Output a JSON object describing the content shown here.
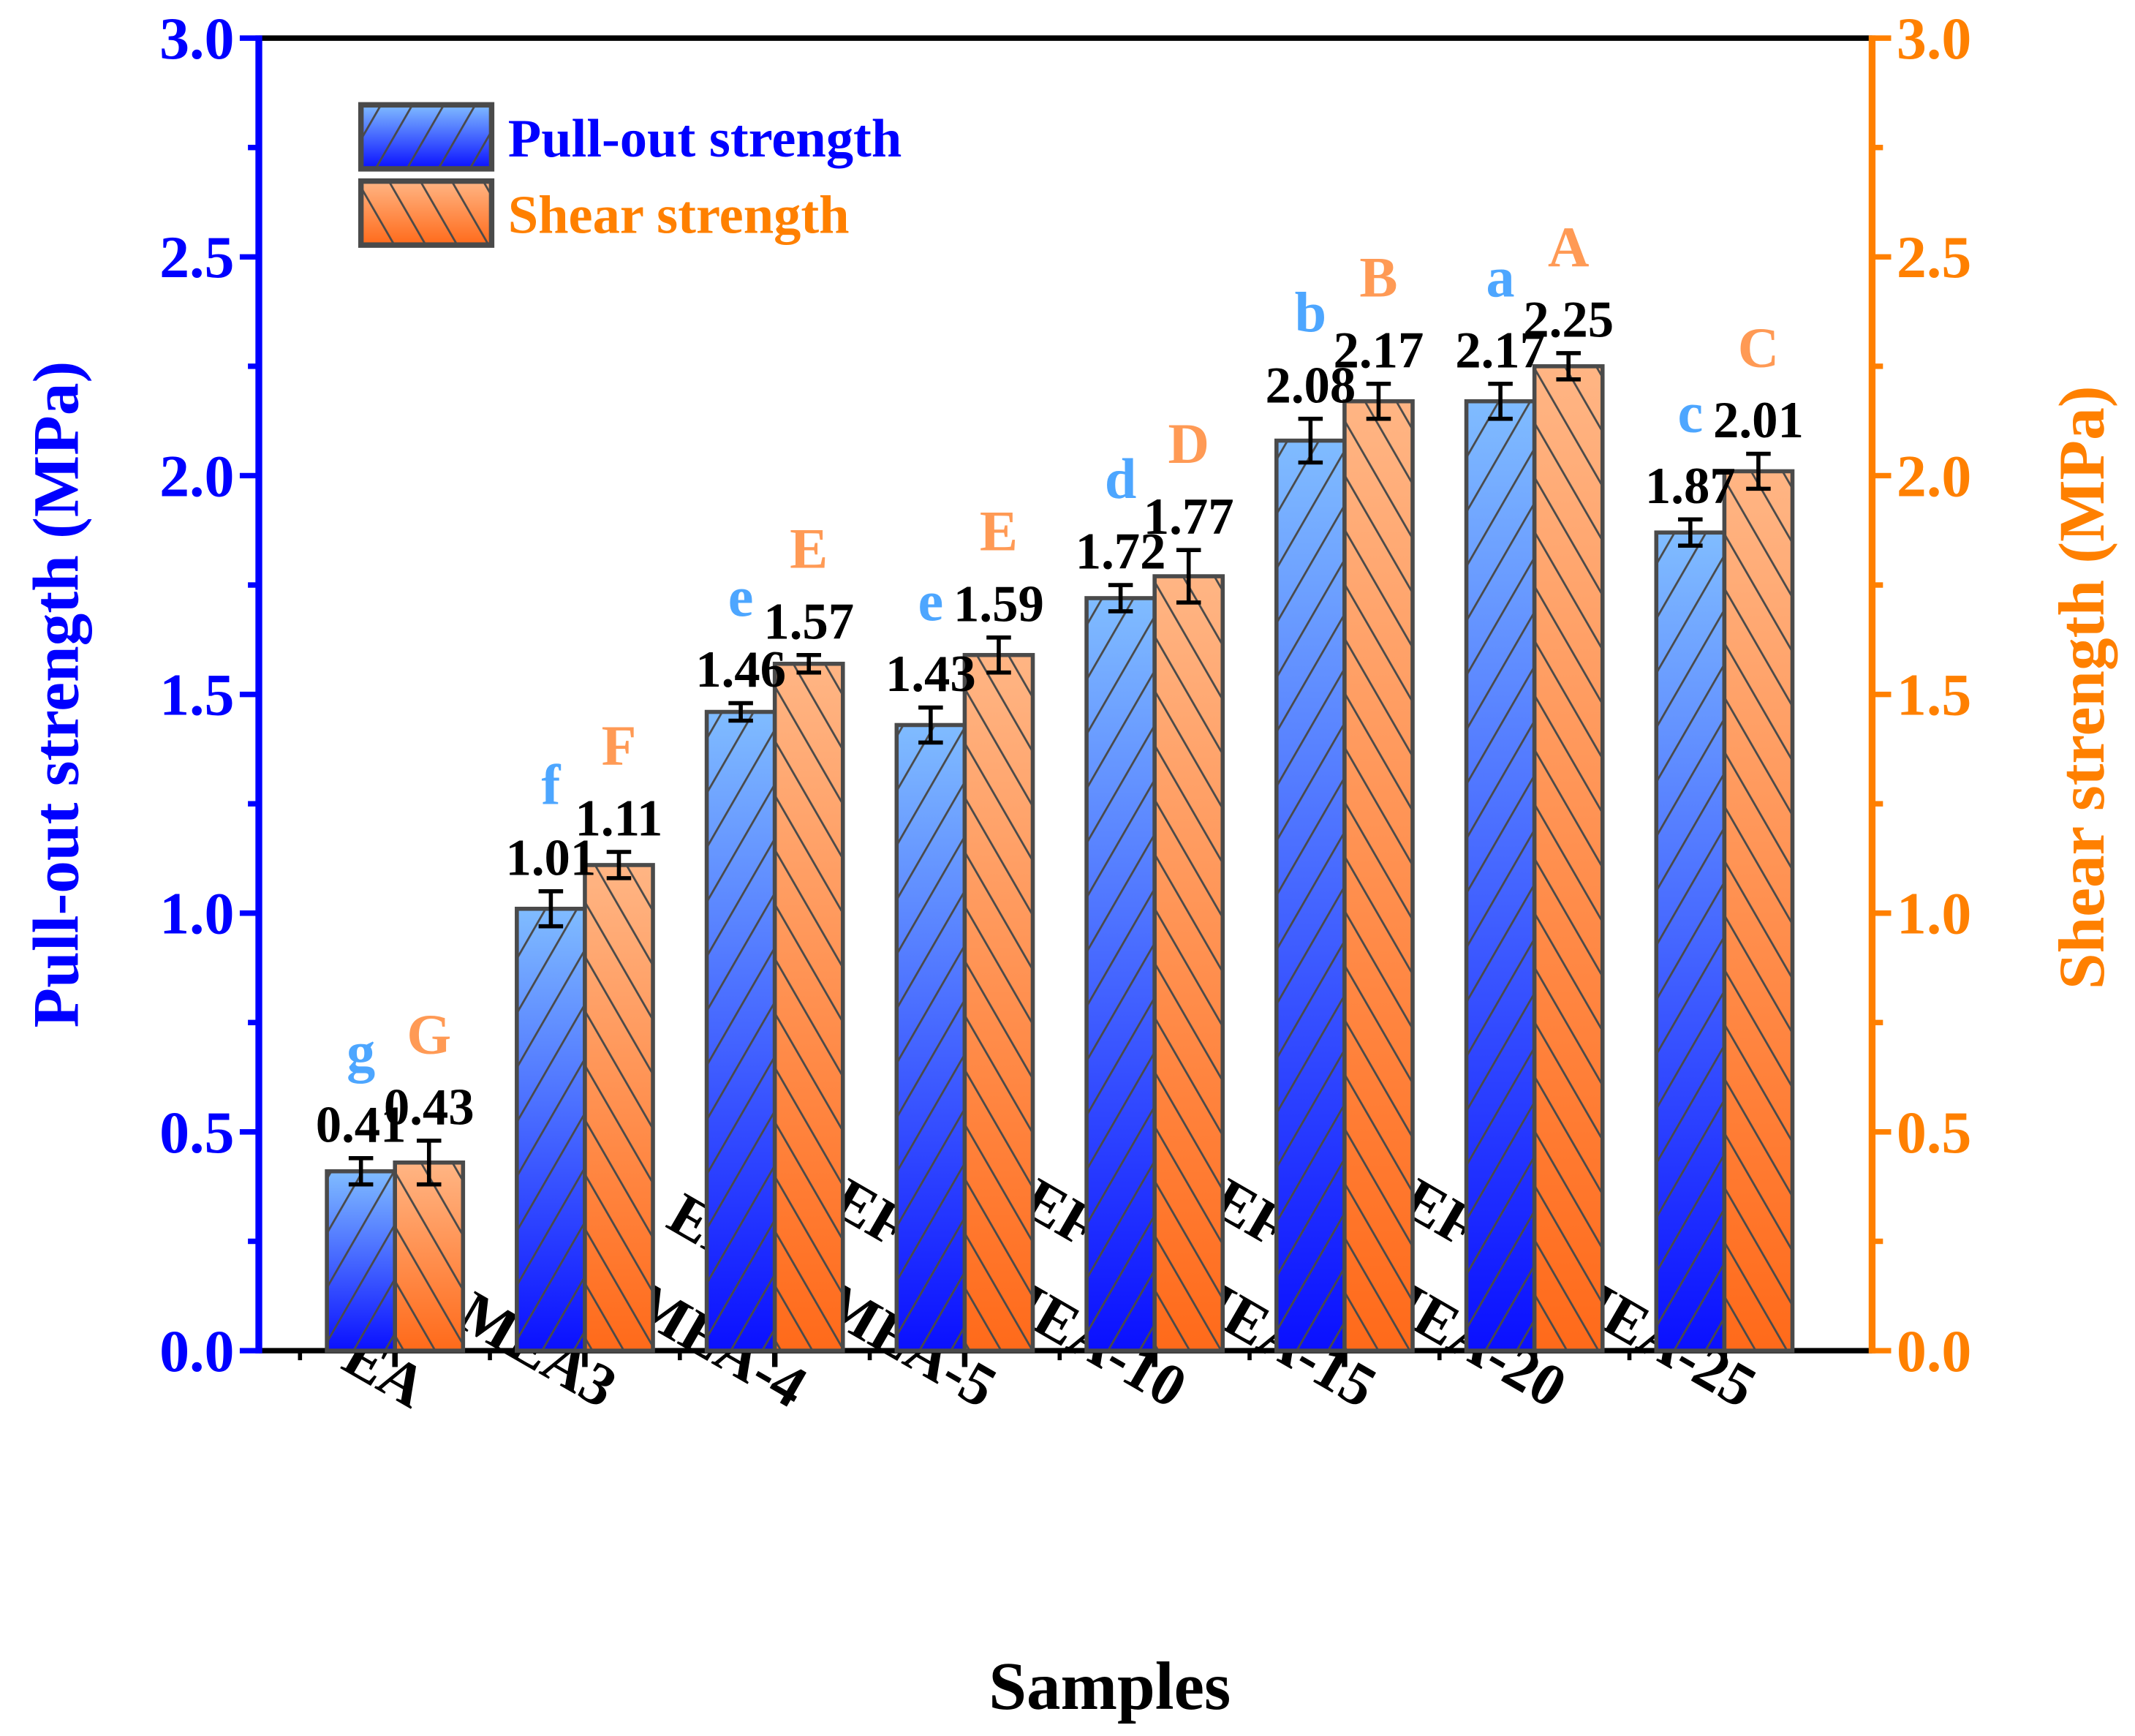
{
  "chart_data": {
    "type": "bar",
    "xlabel": "Samples",
    "ylabel": "Pull-out strength (MPa)",
    "ylabel_right": "Shear strength (MPa)",
    "ylim": [
      0,
      3.0
    ],
    "ylim_right": [
      0,
      3.0
    ],
    "yticks": [
      "0.0",
      "0.5",
      "1.0",
      "1.5",
      "2.0",
      "2.5",
      "3.0"
    ],
    "categories": [
      "EA",
      "SBR-MEA3",
      "SBS-MEA-4",
      "EFPU-MEA-5",
      "EFPU-MEA-10",
      "EFPU-MEA-15",
      "EFPU-MEA-20",
      "EFPU-MEA-25"
    ],
    "legend_position": "top-left",
    "series": [
      {
        "name": "Pull-out strength",
        "axis": "left",
        "color_top": "#80bcff",
        "color_bottom": "#0a10ff",
        "label_color": "#0000ff",
        "letter_color": "#4da6ff",
        "values": [
          0.41,
          1.01,
          1.46,
          1.43,
          1.72,
          2.08,
          2.17,
          1.87
        ],
        "value_labels": [
          "0.41",
          "1.01",
          "1.46",
          "1.43",
          "1.72",
          "2.08",
          "2.17",
          "1.87"
        ],
        "errors": [
          0.03,
          0.04,
          0.02,
          0.04,
          0.03,
          0.05,
          0.04,
          0.03
        ],
        "letters": [
          "g",
          "f",
          "e",
          "e",
          "d",
          "b",
          "a",
          "c"
        ]
      },
      {
        "name": "Shear strength",
        "axis": "right",
        "color_top": "#ffb584",
        "color_bottom": "#ff6a1a",
        "label_color": "#ff8000",
        "letter_color": "#ff9a55",
        "values": [
          0.43,
          1.11,
          1.57,
          1.59,
          1.77,
          2.17,
          2.25,
          2.01
        ],
        "value_labels": [
          "0.43",
          "1.11",
          "1.57",
          "1.59",
          "1.77",
          "2.17",
          "2.25",
          "2.01"
        ],
        "errors": [
          0.05,
          0.03,
          0.02,
          0.04,
          0.06,
          0.04,
          0.03,
          0.04
        ],
        "letters": [
          "G",
          "F",
          "E",
          "E",
          "D",
          "B",
          "A",
          "C"
        ]
      }
    ]
  }
}
